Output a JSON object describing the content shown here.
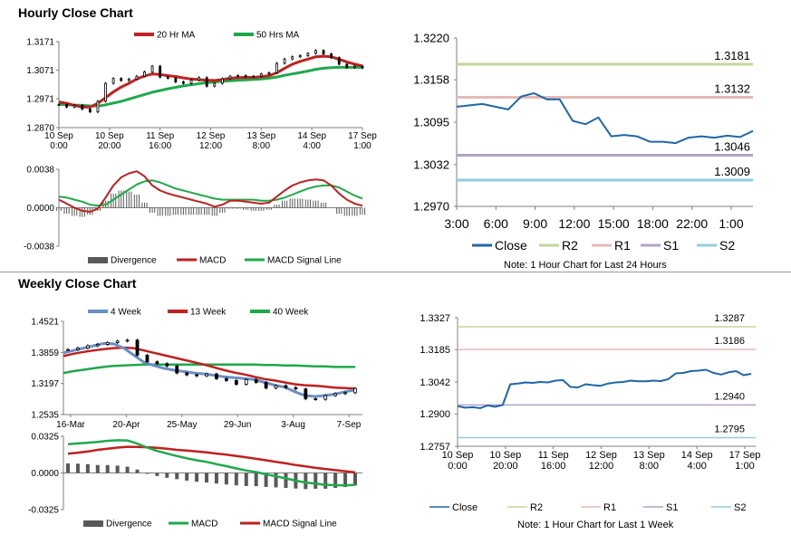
{
  "sections": {
    "hourly_title": "Hourly Close Chart",
    "weekly_title": "Weekly Close Chart"
  },
  "colors": {
    "close": "#1f67a6",
    "ma_red": "#c0201f",
    "ma_green": "#20a84c",
    "ma_blue": "#6a8fc7",
    "r2": "#c3d69b",
    "r1": "#e6b9b8",
    "s1": "#b3a2c7",
    "s2": "#93cddd",
    "divergence": "#595959"
  },
  "chart_data": [
    {
      "id": "hourly_price",
      "type": "line",
      "title": "",
      "ylim": [
        1.287,
        1.3171
      ],
      "yticks": [
        "1.3171",
        "1.3071",
        "1.2971",
        "1.2870"
      ],
      "ytick_values": [
        1.3171,
        1.3071,
        1.2971,
        1.287
      ],
      "xticks": [
        [
          "10 Sep",
          "0:00"
        ],
        [
          "10 Sep",
          "20:00"
        ],
        [
          "11 Sep",
          "16:00"
        ],
        [
          "12 Sep",
          "12:00"
        ],
        [
          "13 Sep",
          "8:00"
        ],
        [
          "14 Sep",
          "4:00"
        ],
        [
          "17 Sep",
          "1:00"
        ]
      ],
      "legend": [
        "20 Hr MA",
        "50 Hrs MA"
      ],
      "series": [
        {
          "name": "Close",
          "values": [
            1.2951,
            1.2942,
            1.2948,
            1.2935,
            1.2925,
            1.2962,
            1.3025,
            1.3042,
            1.3035,
            1.304,
            1.305,
            1.3065,
            1.3085,
            1.3047,
            1.3043,
            1.303,
            1.3025,
            1.3037,
            1.3045,
            1.3015,
            1.3025,
            1.3041,
            1.305,
            1.3052,
            1.3048,
            1.305,
            1.3058,
            1.3062,
            1.3095,
            1.311,
            1.3118,
            1.3122,
            1.313,
            1.314,
            1.3128,
            1.3115,
            1.3092,
            1.308,
            1.3085,
            1.3079
          ]
        },
        {
          "name": "20 Hr MA",
          "values": [
            1.296,
            1.2955,
            1.2948,
            1.2942,
            1.2942,
            1.2955,
            1.2975,
            1.2995,
            1.3012,
            1.3025,
            1.304,
            1.3051,
            1.3058,
            1.3056,
            1.3052,
            1.3049,
            1.3044,
            1.304,
            1.3038,
            1.3036,
            1.3035,
            1.3038,
            1.3043,
            1.3045,
            1.3046,
            1.3046,
            1.3048,
            1.3052,
            1.3062,
            1.3078,
            1.3092,
            1.3102,
            1.311,
            1.3118,
            1.312,
            1.3118,
            1.3109,
            1.31,
            1.3092,
            1.3086
          ]
        },
        {
          "name": "50 Hrs MA",
          "values": [
            1.2952,
            1.295,
            1.2949,
            1.2948,
            1.2946,
            1.2945,
            1.295,
            1.2956,
            1.2962,
            1.297,
            1.2978,
            1.2986,
            1.2994,
            1.3,
            1.3006,
            1.3011,
            1.3016,
            1.302,
            1.3024,
            1.3027,
            1.303,
            1.3032,
            1.3034,
            1.3036,
            1.3037,
            1.3039,
            1.304,
            1.3043,
            1.3047,
            1.3053,
            1.3058,
            1.3063,
            1.3068,
            1.3074,
            1.3078,
            1.308,
            1.3081,
            1.3081,
            1.3081,
            1.3081
          ]
        }
      ]
    },
    {
      "id": "hourly_macd",
      "type": "line",
      "ylim": [
        -0.0038,
        0.0038
      ],
      "yticks": [
        "0.0038",
        "0.0000",
        "-0.0038"
      ],
      "ytick_values": [
        0.0038,
        0.0,
        -0.0038
      ],
      "legend": [
        "Divergence",
        "MACD",
        "MACD Signal Line"
      ],
      "series": [
        {
          "name": "MACD",
          "values": [
            0.0008,
            0.0004,
            0.0,
            -0.0003,
            -0.0004,
            -0.0001,
            0.001,
            0.0022,
            0.003,
            0.0034,
            0.0036,
            0.0031,
            0.0022,
            0.0017,
            0.0014,
            0.0012,
            0.001,
            0.0008,
            0.0006,
            0.0004,
            0.0001,
            0.0003,
            0.0007,
            0.0007,
            0.0006,
            0.0005,
            0.0004,
            0.0005,
            0.0011,
            0.0017,
            0.0022,
            0.0025,
            0.0027,
            0.0028,
            0.0027,
            0.0022,
            0.0014,
            0.0008,
            0.0004,
            0.0002
          ]
        },
        {
          "name": "MACD Signal Line",
          "values": [
            0.0011,
            0.001,
            0.0008,
            0.0006,
            0.0003,
            0.0002,
            0.0003,
            0.0008,
            0.0013,
            0.0018,
            0.0023,
            0.0026,
            0.0027,
            0.0025,
            0.0022,
            0.0019,
            0.0017,
            0.0015,
            0.0013,
            0.0011,
            0.0009,
            0.0008,
            0.0008,
            0.0008,
            0.0008,
            0.0008,
            0.0007,
            0.0007,
            0.0008,
            0.001,
            0.0013,
            0.0016,
            0.0019,
            0.0021,
            0.0022,
            0.0022,
            0.002,
            0.0016,
            0.0012,
            0.0009
          ]
        }
      ]
    },
    {
      "id": "hourly_24h",
      "type": "line",
      "ylim": [
        1.297,
        1.322
      ],
      "yticks": [
        "1.3220",
        "1.3158",
        "1.3095",
        "1.3032",
        "1.2970"
      ],
      "ytick_values": [
        1.322,
        1.3158,
        1.3095,
        1.3032,
        1.297
      ],
      "xticks": [
        "3:00",
        "6:00",
        "9:00",
        "12:00",
        "15:00",
        "18:00",
        "22:00",
        "1:00"
      ],
      "legend": [
        "Close",
        "R2",
        "R1",
        "S1",
        "S2"
      ],
      "note": "Note: 1 Hour Chart for Last 24 Hours",
      "levels": [
        {
          "name": "R2",
          "value": 1.3181,
          "label": "1.3181"
        },
        {
          "name": "R1",
          "value": 1.3132,
          "label": "1.3132"
        },
        {
          "name": "S1",
          "value": 1.3046,
          "label": "1.3046"
        },
        {
          "name": "S2",
          "value": 1.3009,
          "label": "1.3009"
        }
      ],
      "series": [
        {
          "name": "Close",
          "values": [
            1.3118,
            1.312,
            1.3122,
            1.3118,
            1.3114,
            1.3133,
            1.3138,
            1.3129,
            1.3129,
            1.3097,
            1.3092,
            1.3102,
            1.3074,
            1.3076,
            1.3074,
            1.3066,
            1.3066,
            1.3064,
            1.3072,
            1.3074,
            1.3072,
            1.3075,
            1.3073,
            1.3082
          ]
        }
      ]
    },
    {
      "id": "weekly_price",
      "type": "line",
      "ylim": [
        1.2535,
        1.4521
      ],
      "yticks": [
        "1.4521",
        "1.3859",
        "1.3197",
        "1.2535"
      ],
      "ytick_values": [
        1.4521,
        1.3859,
        1.3197,
        1.2535
      ],
      "xticks": [
        "16-Mar",
        "20-Apr",
        "25-May",
        "29-Jun",
        "3-Aug",
        "7-Sep"
      ],
      "legend": [
        "4 Week",
        "13 Week",
        "40 Week"
      ],
      "series": [
        {
          "name": "Close",
          "values": [
            1.392,
            1.395,
            1.4,
            1.403,
            1.407,
            1.41,
            1.412,
            1.38,
            1.366,
            1.362,
            1.357,
            1.342,
            1.338,
            1.336,
            1.34,
            1.33,
            1.326,
            1.318,
            1.328,
            1.322,
            1.31,
            1.315,
            1.311,
            1.308,
            1.287,
            1.286,
            1.294,
            1.298,
            1.3,
            1.309
          ]
        },
        {
          "name": "4 Week",
          "values": [
            1.385,
            1.39,
            1.395,
            1.4,
            1.405,
            1.404,
            1.395,
            1.38,
            1.365,
            1.358,
            1.352,
            1.348,
            1.345,
            1.342,
            1.34,
            1.337,
            1.334,
            1.332,
            1.33,
            1.328,
            1.322,
            1.316,
            1.312,
            1.302,
            1.294,
            1.292,
            1.294,
            1.297,
            1.302,
            1.306
          ]
        },
        {
          "name": "13 Week",
          "values": [
            1.378,
            1.383,
            1.387,
            1.39,
            1.393,
            1.395,
            1.396,
            1.395,
            1.39,
            1.385,
            1.38,
            1.375,
            1.37,
            1.365,
            1.36,
            1.354,
            1.348,
            1.343,
            1.339,
            1.334,
            1.329,
            1.326,
            1.322,
            1.318,
            1.316,
            1.315,
            1.313,
            1.311,
            1.31,
            1.309
          ]
        },
        {
          "name": "40 Week",
          "values": [
            1.342,
            1.346,
            1.349,
            1.352,
            1.355,
            1.357,
            1.358,
            1.359,
            1.36,
            1.36,
            1.36,
            1.36,
            1.36,
            1.36,
            1.36,
            1.36,
            1.36,
            1.36,
            1.36,
            1.36,
            1.359,
            1.359,
            1.358,
            1.358,
            1.357,
            1.356,
            1.356,
            1.355,
            1.355,
            1.355
          ]
        }
      ]
    },
    {
      "id": "weekly_macd",
      "type": "line",
      "ylim": [
        -0.0325,
        0.0325
      ],
      "yticks": [
        "0.0325",
        "0.0000",
        "-0.0325"
      ],
      "ytick_values": [
        0.0325,
        0.0,
        -0.0325
      ],
      "legend": [
        "Divergence",
        "MACD",
        "MACD Signal Line"
      ],
      "series": [
        {
          "name": "MACD",
          "values": [
            0.0255,
            0.0262,
            0.0268,
            0.0275,
            0.0285,
            0.029,
            0.0288,
            0.026,
            0.0225,
            0.0195,
            0.0172,
            0.015,
            0.013,
            0.0112,
            0.0098,
            0.0078,
            0.006,
            0.004,
            0.0022,
            0.0008,
            -0.0012,
            -0.003,
            -0.0048,
            -0.0068,
            -0.0085,
            -0.0095,
            -0.0105,
            -0.0108,
            -0.011,
            -0.0105
          ]
        },
        {
          "name": "MACD Signal Line",
          "values": [
            0.017,
            0.018,
            0.019,
            0.0205,
            0.0215,
            0.0225,
            0.0232,
            0.023,
            0.0228,
            0.0222,
            0.0215,
            0.0205,
            0.0198,
            0.019,
            0.0182,
            0.0172,
            0.0162,
            0.015,
            0.0138,
            0.0125,
            0.0112,
            0.0098,
            0.0085,
            0.007,
            0.0058,
            0.0045,
            0.0035,
            0.0025,
            0.0015,
            0.0005
          ]
        }
      ]
    },
    {
      "id": "weekly_1w",
      "type": "line",
      "ylim": [
        1.2757,
        1.3327
      ],
      "yticks": [
        "1.3327",
        "1.3185",
        "1.3042",
        "1.2900",
        "1.2757"
      ],
      "ytick_values": [
        1.3327,
        1.3185,
        1.3042,
        1.29,
        1.2757
      ],
      "xticks": [
        [
          "10 Sep",
          "0:00"
        ],
        [
          "10 Sep",
          "20:00"
        ],
        [
          "11 Sep",
          "16:00"
        ],
        [
          "12 Sep",
          "12:00"
        ],
        [
          "13 Sep",
          "8:00"
        ],
        [
          "14 Sep",
          "4:00"
        ],
        [
          "17 Sep",
          "1:00"
        ]
      ],
      "legend": [
        "Close",
        "R2",
        "R1",
        "S1",
        "S2"
      ],
      "note": "Note: 1 Hour Chart for Last 1 Week",
      "levels": [
        {
          "name": "R2",
          "value": 1.3287,
          "label": "1.3287"
        },
        {
          "name": "R1",
          "value": 1.3186,
          "label": "1.3186"
        },
        {
          "name": "S1",
          "value": 1.294,
          "label": "1.2940"
        },
        {
          "name": "S2",
          "value": 1.2795,
          "label": "1.2795"
        }
      ],
      "series": [
        {
          "name": "Close",
          "values": [
            1.2935,
            1.2928,
            1.293,
            1.2926,
            1.2938,
            1.2932,
            1.294,
            1.3032,
            1.3035,
            1.304,
            1.3038,
            1.3042,
            1.304,
            1.3048,
            1.305,
            1.302,
            1.3018,
            1.3032,
            1.3028,
            1.3025,
            1.3035,
            1.304,
            1.3042,
            1.3048,
            1.3045,
            1.3045,
            1.3048,
            1.3046,
            1.3055,
            1.308,
            1.3082,
            1.309,
            1.3092,
            1.3096,
            1.3082,
            1.3075,
            1.3085,
            1.309,
            1.3072,
            1.3078
          ]
        }
      ]
    }
  ]
}
